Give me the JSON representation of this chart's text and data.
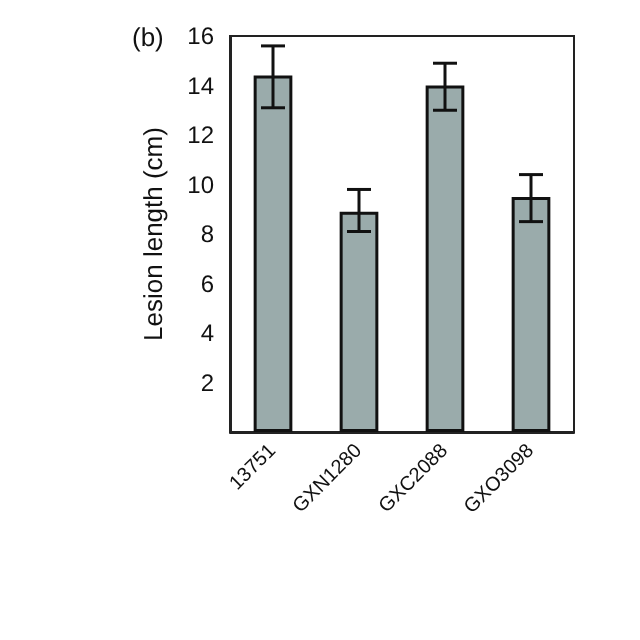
{
  "chart_data": {
    "type": "bar",
    "ylabel": "Lesion length (cm)",
    "annotations": [
      "(b)"
    ],
    "categories": [
      "13751",
      "GXN1280",
      "GXC2088",
      "GXO3098"
    ],
    "values": [
      14.4,
      8.9,
      14.0,
      9.5
    ],
    "errors": [
      [
        13.1,
        15.6
      ],
      [
        8.1,
        9.8
      ],
      [
        13.0,
        14.9
      ],
      [
        8.5,
        10.4
      ]
    ],
    "color": "#9aabab",
    "ylim": [
      0,
      16
    ],
    "yticks": [
      {
        "value": 0,
        "label": null
      },
      2,
      4,
      6,
      8,
      10,
      12,
      14,
      16
    ],
    "grid": false
  }
}
